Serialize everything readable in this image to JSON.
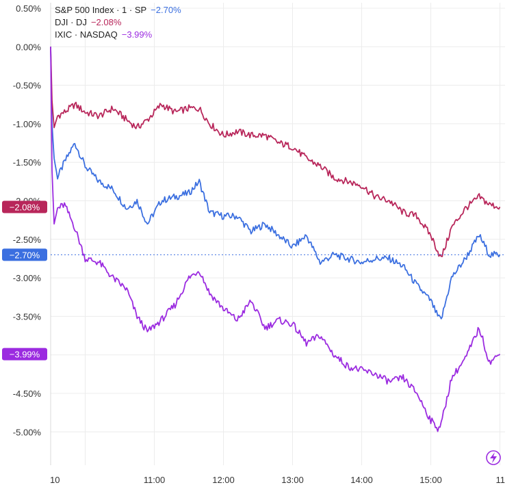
{
  "legend": {
    "sp": {
      "name": "S&P 500 Index · 1 · SP",
      "value": "−2.70%"
    },
    "dji": {
      "name": "DJI · DJ",
      "value": "−2.08%"
    },
    "ixic": {
      "name": "IXIC · NASDAQ",
      "value": "−3.99%"
    }
  },
  "colors": {
    "sp": "#3b6fe0",
    "dji": "#b8265a",
    "ixic": "#9b2be0",
    "grid": "#ececec",
    "axis_text": "#333333"
  },
  "icons": {
    "bolt": "lightning-icon"
  },
  "chart_data": {
    "type": "line",
    "y_tick_labels": [
      "0.50%",
      "0.00%",
      "-0.50%",
      "-1.00%",
      "-1.50%",
      "-2.00%",
      "-2.50%",
      "-3.00%",
      "-3.50%",
      "-4.00%",
      "-4.50%",
      "-5.00%"
    ],
    "x_tick_labels": [
      "10",
      "11:00",
      "12:00",
      "13:00",
      "14:00",
      "15:00",
      "11"
    ],
    "ylim": [
      -5.4,
      0.6
    ],
    "x_unit": "hours",
    "xlim": [
      9.5,
      16.15
    ],
    "grid": true,
    "legend_position": "top-left",
    "last_value_labels": [
      "−2.08%",
      "−2.70%",
      "−3.99%"
    ],
    "series": [
      {
        "name": "S&P 500 Index · 1 · SP",
        "color": "#3b6fe0",
        "x": [
          9.5,
          9.52,
          9.55,
          9.6,
          9.7,
          9.85,
          10.0,
          10.2,
          10.4,
          10.6,
          10.75,
          10.9,
          11.1,
          11.3,
          11.5,
          11.65,
          11.8,
          12.0,
          12.2,
          12.4,
          12.6,
          12.8,
          13.0,
          13.2,
          13.4,
          13.6,
          13.8,
          14.0,
          14.2,
          14.4,
          14.6,
          14.8,
          15.0,
          15.1,
          15.15,
          15.3,
          15.5,
          15.7,
          15.85,
          16.0
        ],
        "y": [
          0.0,
          -1.0,
          -1.45,
          -1.7,
          -1.5,
          -1.25,
          -1.55,
          -1.75,
          -1.85,
          -2.1,
          -2.0,
          -2.3,
          -2.0,
          -1.95,
          -1.9,
          -1.75,
          -2.15,
          -2.2,
          -2.2,
          -2.4,
          -2.3,
          -2.45,
          -2.6,
          -2.45,
          -2.8,
          -2.7,
          -2.75,
          -2.8,
          -2.75,
          -2.75,
          -2.85,
          -3.1,
          -3.3,
          -3.5,
          -3.55,
          -3.0,
          -2.75,
          -2.45,
          -2.7,
          -2.7
        ]
      },
      {
        "name": "DJI · DJ",
        "color": "#b8265a",
        "x": [
          9.5,
          9.52,
          9.55,
          9.6,
          9.7,
          9.85,
          10.0,
          10.2,
          10.4,
          10.6,
          10.75,
          10.9,
          11.1,
          11.3,
          11.5,
          11.65,
          11.8,
          12.0,
          12.2,
          12.4,
          12.6,
          12.8,
          13.0,
          13.2,
          13.4,
          13.6,
          13.8,
          14.0,
          14.2,
          14.4,
          14.6,
          14.8,
          15.0,
          15.1,
          15.15,
          15.3,
          15.5,
          15.7,
          15.85,
          16.0
        ],
        "y": [
          0.0,
          -0.7,
          -1.05,
          -0.9,
          -0.85,
          -0.75,
          -0.85,
          -0.9,
          -0.8,
          -0.95,
          -1.05,
          -0.95,
          -0.75,
          -0.85,
          -0.8,
          -0.8,
          -1.0,
          -1.15,
          -1.1,
          -1.15,
          -1.15,
          -1.25,
          -1.3,
          -1.45,
          -1.55,
          -1.7,
          -1.75,
          -1.8,
          -1.95,
          -2.0,
          -2.15,
          -2.2,
          -2.45,
          -2.65,
          -2.75,
          -2.35,
          -2.1,
          -1.95,
          -2.05,
          -2.08
        ]
      },
      {
        "name": "IXIC · NASDAQ",
        "color": "#9b2be0",
        "x": [
          9.5,
          9.52,
          9.55,
          9.6,
          9.7,
          9.85,
          10.0,
          10.2,
          10.4,
          10.6,
          10.75,
          10.9,
          11.1,
          11.3,
          11.5,
          11.65,
          11.8,
          12.0,
          12.2,
          12.4,
          12.6,
          12.8,
          13.0,
          13.2,
          13.4,
          13.6,
          13.8,
          14.0,
          14.2,
          14.4,
          14.6,
          14.8,
          15.0,
          15.1,
          15.15,
          15.3,
          15.5,
          15.7,
          15.85,
          16.0
        ],
        "y": [
          0.0,
          -1.6,
          -2.3,
          -2.1,
          -2.05,
          -2.35,
          -2.75,
          -2.8,
          -3.0,
          -3.15,
          -3.5,
          -3.7,
          -3.55,
          -3.35,
          -3.0,
          -2.9,
          -3.2,
          -3.4,
          -3.55,
          -3.3,
          -3.65,
          -3.55,
          -3.6,
          -3.85,
          -3.75,
          -4.0,
          -4.15,
          -4.2,
          -4.25,
          -4.35,
          -4.3,
          -4.5,
          -4.85,
          -4.95,
          -4.9,
          -4.3,
          -4.05,
          -3.65,
          -4.1,
          -3.99
        ]
      }
    ]
  }
}
